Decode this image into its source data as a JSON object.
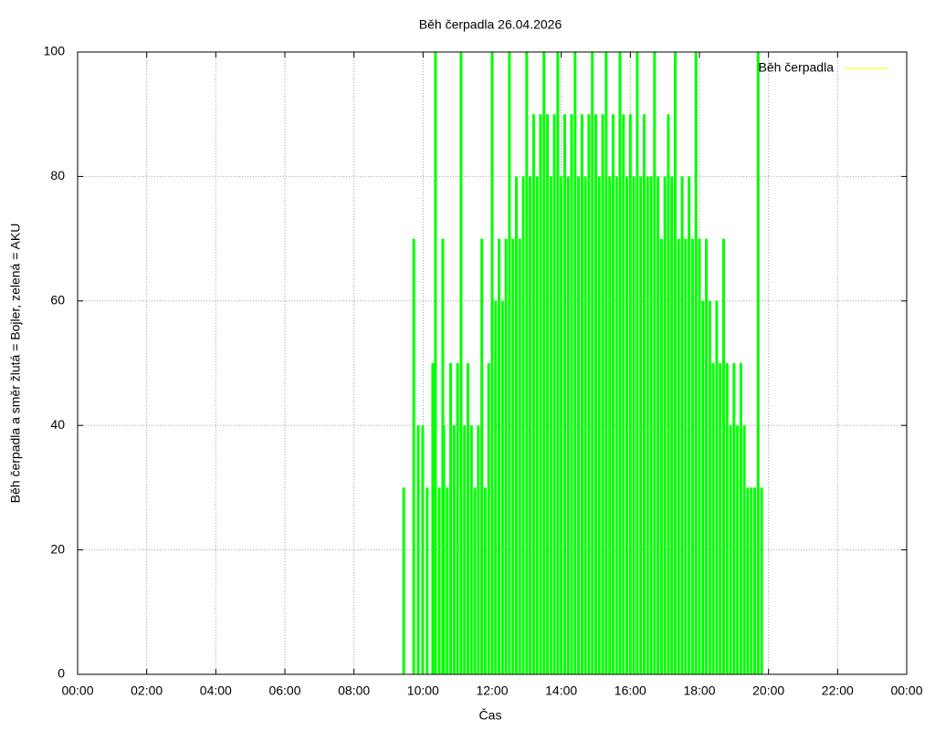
{
  "chart_data": {
    "type": "impulses",
    "title": "Běh čerpadla 26.04.2026",
    "x_label": "Čas",
    "y_label": "Běh čerpadla a směr žlutá = Bojler, zelená = AKU",
    "xlim": [
      0,
      24
    ],
    "xticks": [
      {
        "value": 0,
        "label": "00:00"
      },
      {
        "value": 2,
        "label": "02:00"
      },
      {
        "value": 4,
        "label": "04:00"
      },
      {
        "value": 6,
        "label": "06:00"
      },
      {
        "value": 8,
        "label": "08:00"
      },
      {
        "value": 10,
        "label": "10:00"
      },
      {
        "value": 12,
        "label": "12:00"
      },
      {
        "value": 14,
        "label": "14:00"
      },
      {
        "value": 16,
        "label": "16:00"
      },
      {
        "value": 18,
        "label": "18:00"
      },
      {
        "value": 20,
        "label": "20:00"
      },
      {
        "value": 22,
        "label": "22:00"
      },
      {
        "value": 24,
        "label": "00:00"
      }
    ],
    "ylim": [
      0,
      100
    ],
    "yticks": [
      0,
      20,
      40,
      60,
      80,
      100
    ],
    "grid": true,
    "legend": "top-right",
    "series": [
      {
        "name": "Běh čerpadla",
        "color": "#00ff00",
        "legend_color": "#ffff00",
        "x": [
          9.44,
          9.73,
          9.86,
          9.99,
          10.12,
          10.28,
          10.36,
          10.47,
          10.57,
          10.6,
          10.7,
          10.8,
          10.9,
          11.0,
          11.1,
          11.2,
          11.3,
          11.4,
          11.5,
          11.6,
          11.7,
          11.8,
          11.9,
          12.0,
          12.1,
          12.2,
          12.3,
          12.4,
          12.5,
          12.6,
          12.7,
          12.8,
          12.9,
          13.0,
          13.1,
          13.2,
          13.3,
          13.4,
          13.5,
          13.6,
          13.7,
          13.8,
          13.9,
          14.0,
          14.1,
          14.2,
          14.3,
          14.4,
          14.5,
          14.6,
          14.7,
          14.8,
          14.9,
          15.0,
          15.1,
          15.2,
          15.3,
          15.4,
          15.5,
          15.6,
          15.7,
          15.8,
          15.9,
          16.0,
          16.1,
          16.2,
          16.3,
          16.4,
          16.5,
          16.6,
          16.7,
          16.8,
          16.9,
          17.0,
          17.1,
          17.2,
          17.3,
          17.4,
          17.5,
          17.6,
          17.7,
          17.8,
          17.9,
          18.0,
          18.1,
          18.2,
          18.3,
          18.4,
          18.5,
          18.6,
          18.7,
          18.8,
          18.9,
          19.0,
          19.1,
          19.2,
          19.3,
          19.4,
          19.5,
          19.6,
          19.7,
          19.8
        ],
        "values": [
          30,
          70,
          40,
          40,
          30,
          50,
          100,
          30,
          70,
          40,
          30,
          50,
          40,
          50,
          100,
          40,
          50,
          40,
          30,
          40,
          70,
          30,
          50,
          100,
          60,
          70,
          60,
          70,
          100,
          70,
          80,
          70,
          80,
          100,
          80,
          90,
          80,
          90,
          100,
          90,
          80,
          90,
          100,
          80,
          90,
          80,
          90,
          100,
          80,
          90,
          80,
          90,
          100,
          90,
          80,
          90,
          100,
          80,
          90,
          80,
          100,
          90,
          80,
          90,
          80,
          100,
          80,
          90,
          80,
          80,
          100,
          80,
          70,
          80,
          90,
          80,
          100,
          70,
          80,
          70,
          80,
          70,
          100,
          70,
          60,
          70,
          60,
          50,
          60,
          50,
          70,
          50,
          40,
          50,
          40,
          50,
          40,
          30,
          30,
          30,
          100,
          30
        ]
      }
    ]
  }
}
